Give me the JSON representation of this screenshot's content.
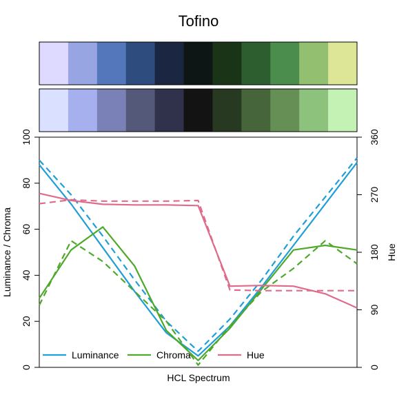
{
  "chart_data": {
    "type": "line",
    "title": "Tofino",
    "xlabel": "HCL Spectrum",
    "ylabel_left": "Luminance / Chroma",
    "ylabel_right": "Hue",
    "ylim_left": [
      0,
      100
    ],
    "ylim_right": [
      0,
      360
    ],
    "yticks_left": [
      "0",
      "20",
      "40",
      "60",
      "80",
      "100"
    ],
    "yticks_right": [
      "0",
      "90",
      "180",
      "270",
      "360"
    ],
    "legend": {
      "position": "bottom-left",
      "entries": [
        {
          "label": "Luminance",
          "color": "#1f9ed8"
        },
        {
          "label": "Chroma",
          "color": "#4ea82a"
        },
        {
          "label": "Hue",
          "color": "#de6b8a"
        }
      ]
    },
    "swatches_top": [
      "#DED9FF",
      "#97A5E2",
      "#5377BA",
      "#2F4C7F",
      "#1B2642",
      "#0D1615",
      "#1A3418",
      "#2C5E30",
      "#4A8D4C",
      "#93BF70",
      "#DCE696"
    ],
    "swatches_bottom": [
      "#DAE0FF",
      "#A6B0EF",
      "#7A81B6",
      "#545979",
      "#30324B",
      "#131313",
      "#273920",
      "#46653A",
      "#658F55",
      "#8CC27C",
      "#C4F2B5"
    ],
    "x": [
      0,
      0.1,
      0.2,
      0.3,
      0.4,
      0.5,
      0.6,
      0.7,
      0.8,
      0.9,
      1.0
    ],
    "series": [
      {
        "name": "Luminance",
        "style": "solid",
        "axis": "left",
        "color": "#1f9ed8",
        "values": [
          88,
          71,
          52,
          33,
          15,
          5,
          18,
          35,
          53,
          71,
          89
        ]
      },
      {
        "name": "Luminance",
        "style": "dashed",
        "axis": "left",
        "color": "#1f9ed8",
        "values": [
          90,
          75,
          57,
          38,
          20,
          7,
          21,
          38,
          57,
          74,
          91
        ]
      },
      {
        "name": "Chroma",
        "style": "solid",
        "axis": "left",
        "color": "#4ea82a",
        "values": [
          30,
          51,
          61,
          44,
          16,
          3,
          17,
          34,
          51,
          53,
          51
        ]
      },
      {
        "name": "Chroma",
        "style": "dashed",
        "axis": "left",
        "color": "#4ea82a",
        "values": [
          27,
          55,
          46,
          33,
          20,
          1,
          18,
          33,
          43,
          55,
          45
        ]
      },
      {
        "name": "Hue",
        "style": "solid",
        "axis": "right",
        "color": "#de6b8a",
        "values": [
          272,
          261,
          255,
          254,
          254,
          253,
          127,
          128,
          127,
          115,
          93
        ]
      },
      {
        "name": "Hue",
        "style": "dashed",
        "axis": "right",
        "color": "#de6b8a",
        "values": [
          256,
          262,
          260,
          260,
          260,
          261,
          121,
          120,
          120,
          120,
          120
        ]
      }
    ]
  }
}
